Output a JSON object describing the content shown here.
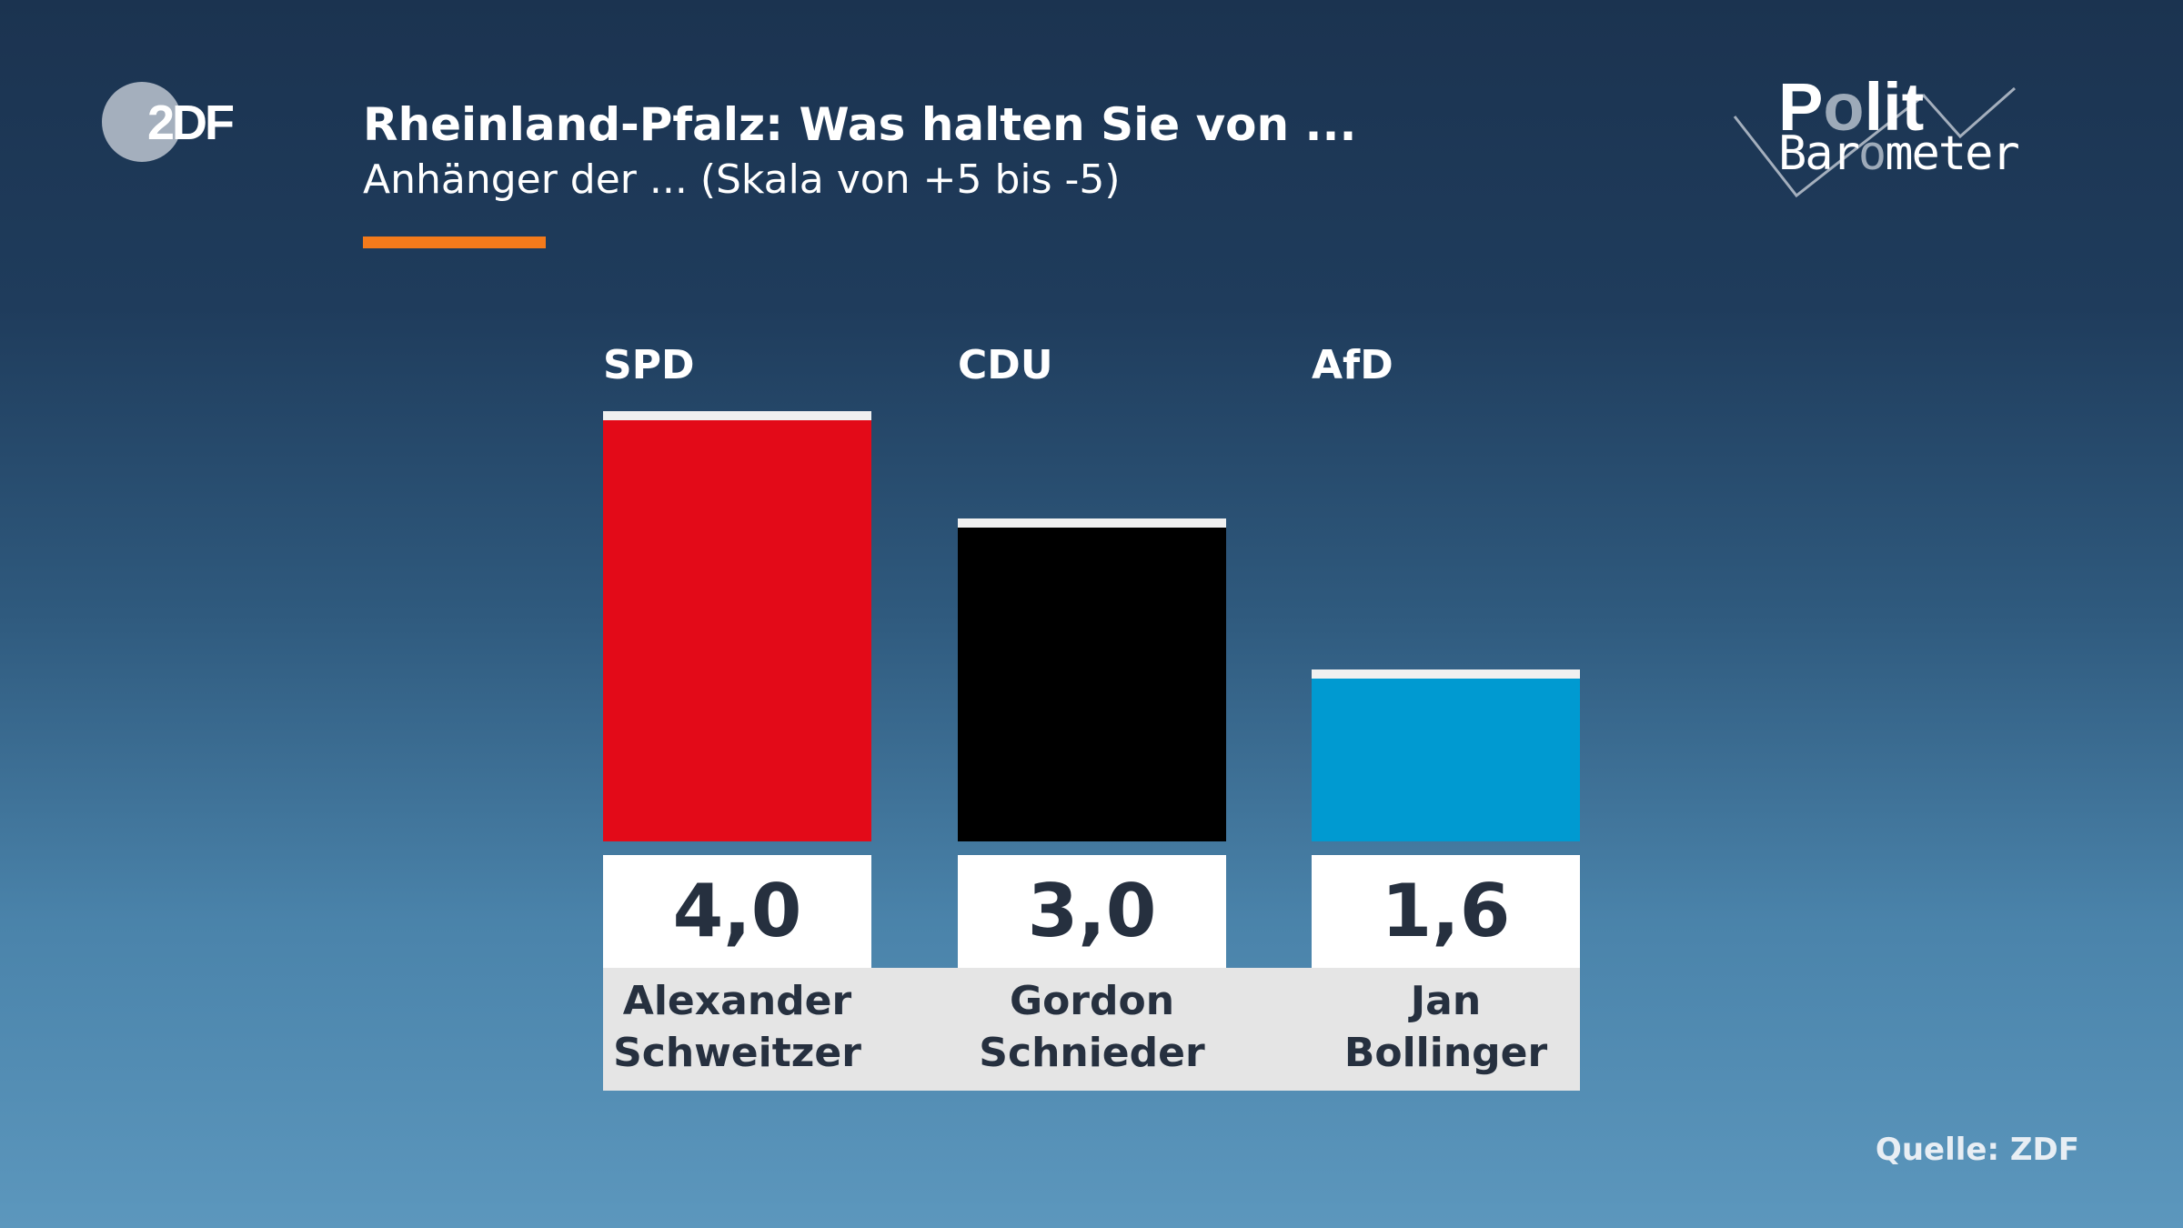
{
  "logo": {
    "zdf": "ZDF",
    "polit": "Polit",
    "barometer": "Barometer"
  },
  "header": {
    "title": "Rheinland-Pfalz: Was halten Sie von ...",
    "subtitle": "Anhänger der ... (Skala von +5 bis -5)",
    "accent_color": "#f47a1b"
  },
  "chart_data": {
    "type": "bar",
    "title": "Rheinland-Pfalz: Was halten Sie von ...",
    "subtitle": "Anhänger der ... (Skala von +5 bis -5)",
    "categories": [
      "SPD",
      "CDU",
      "AfD"
    ],
    "candidates": [
      "Alexander Schweitzer",
      "Gordon Schnieder",
      "Jan Bollinger"
    ],
    "candidate_lines": [
      [
        "Alexander",
        "Schweitzer"
      ],
      [
        "Gordon",
        "Schnieder"
      ],
      [
        "Jan",
        "Bollinger"
      ]
    ],
    "values": [
      4.0,
      3.0,
      1.6
    ],
    "value_labels": [
      "4,0",
      "3,0",
      "1,6"
    ],
    "colors": [
      "#e30a18",
      "#000000",
      "#009ad1"
    ],
    "ylim": [
      -5,
      5
    ],
    "grid": false
  },
  "footer": {
    "source": "Quelle: ZDF"
  }
}
